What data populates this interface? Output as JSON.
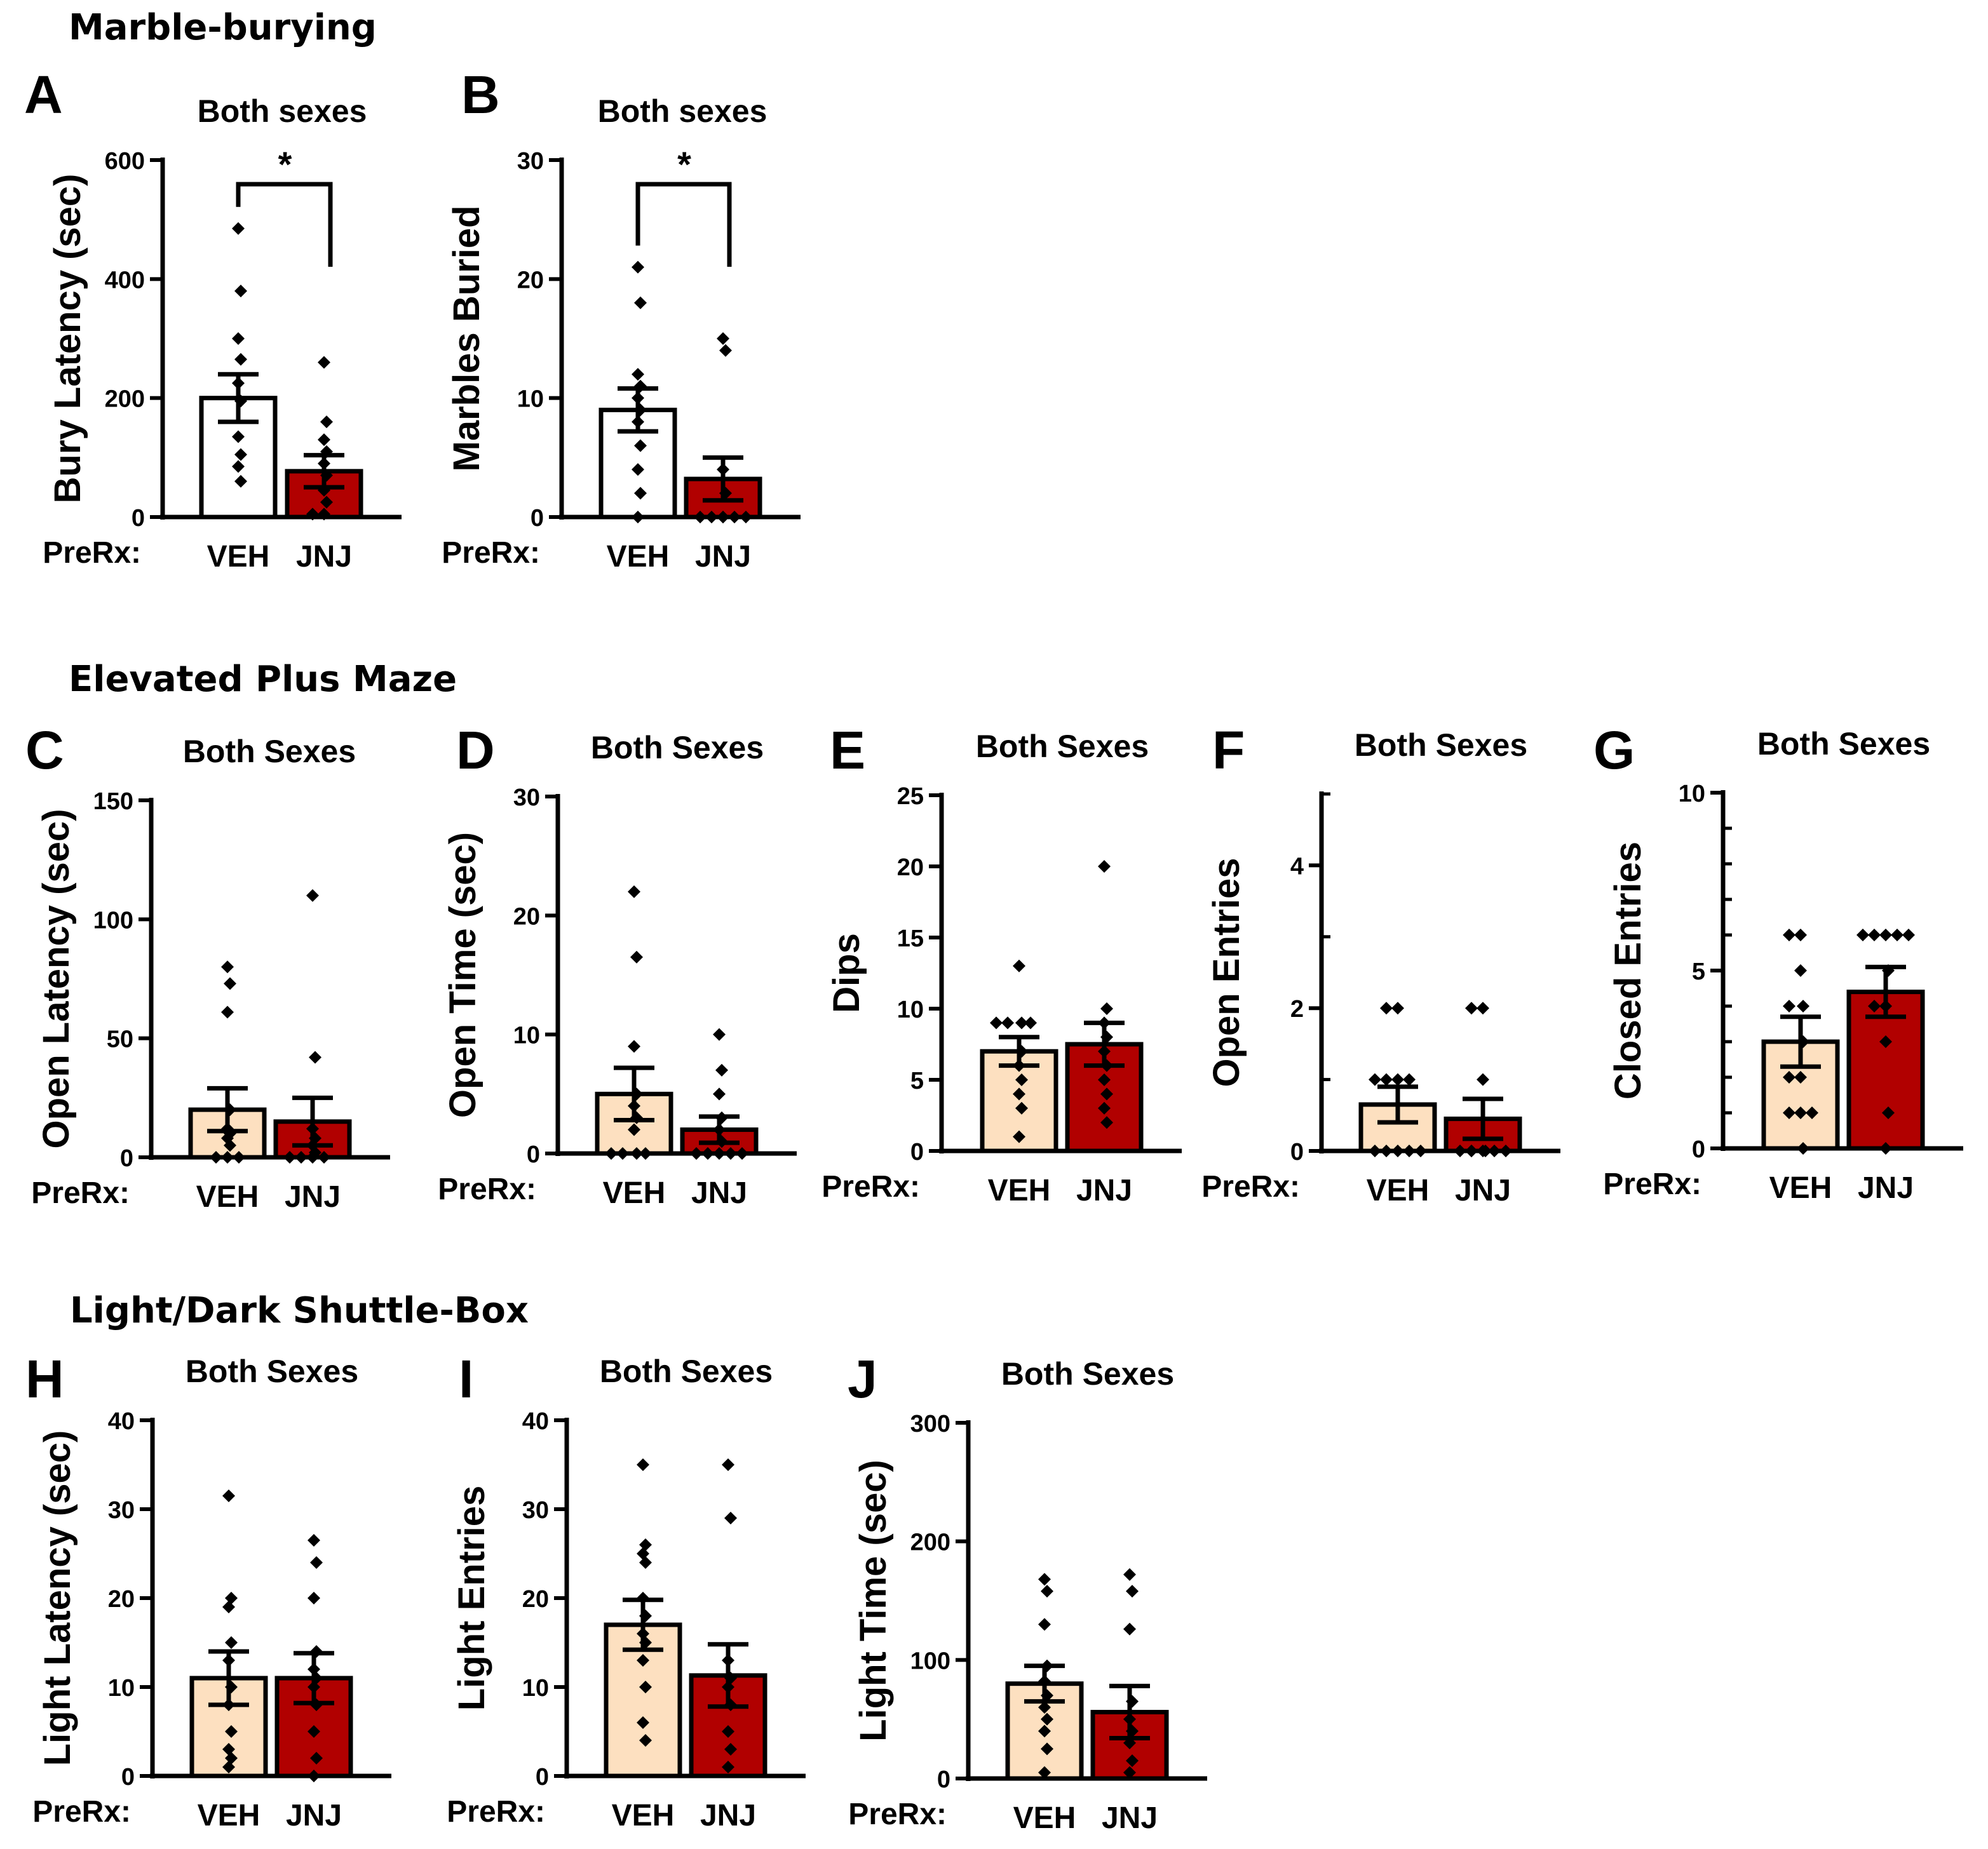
{
  "sections": [
    {
      "id": "marble",
      "title": "Marble-burying"
    },
    {
      "id": "epm",
      "title": "Elevated Plus Maze"
    },
    {
      "id": "ldb",
      "title": "Light/Dark Shuttle-Box"
    }
  ],
  "colors": {
    "veh_white": "#ffffff",
    "veh_tan": "#fde0c0",
    "jnj_red": "#b10000",
    "axis": "#000000"
  },
  "chart_data": [
    {
      "type": "bar",
      "panel": "A",
      "title": "Both sexes",
      "ylabel": "Bury Latency (sec)",
      "xprefix": "PreRx:",
      "categories": [
        "VEH",
        "JNJ"
      ],
      "ylim": [
        0,
        600
      ],
      "yticks": [
        0,
        200,
        400,
        600
      ],
      "minor_per_major": 0,
      "bar_colors": [
        "#ffffff",
        "#b10000"
      ],
      "means": [
        200,
        77
      ],
      "sem": [
        40,
        27
      ],
      "points": [
        [
          485,
          380,
          300,
          265,
          225,
          195,
          135,
          105,
          85,
          60
        ],
        [
          260,
          160,
          130,
          110,
          90,
          70,
          45,
          25,
          5,
          5
        ]
      ],
      "significance": [
        {
          "label": "*",
          "between": [
            0,
            1
          ]
        }
      ]
    },
    {
      "type": "bar",
      "panel": "B",
      "title": "Both sexes",
      "ylabel": "Marbles Buried",
      "xprefix": "PreRx:",
      "categories": [
        "VEH",
        "JNJ"
      ],
      "ylim": [
        0,
        30
      ],
      "yticks": [
        0,
        10,
        20,
        30
      ],
      "minor_per_major": 0,
      "bar_colors": [
        "#ffffff",
        "#b10000"
      ],
      "means": [
        9,
        3.2
      ],
      "sem": [
        1.8,
        1.8
      ],
      "points": [
        [
          21,
          18,
          12,
          11,
          10,
          9,
          8,
          6,
          4,
          2,
          0
        ],
        [
          15,
          14,
          4,
          2,
          0,
          0,
          0,
          0,
          0,
          0
        ]
      ],
      "significance": [
        {
          "label": "*",
          "between": [
            0,
            1
          ]
        }
      ]
    },
    {
      "type": "bar",
      "panel": "C",
      "title": "Both Sexes",
      "ylabel": "Open Latency (sec)",
      "xprefix": "PreRx:",
      "categories": [
        "VEH",
        "JNJ"
      ],
      "ylim": [
        0,
        150
      ],
      "yticks": [
        0,
        50,
        100,
        150
      ],
      "minor_per_major": 0,
      "bar_colors": [
        "#fde0c0",
        "#b10000"
      ],
      "means": [
        20,
        15
      ],
      "sem": [
        9,
        10
      ],
      "points": [
        [
          80,
          73,
          61,
          20,
          12,
          10,
          8,
          5,
          0,
          0,
          0
        ],
        [
          110,
          42,
          12,
          8,
          5,
          2,
          0,
          0,
          0,
          0
        ]
      ],
      "significance": []
    },
    {
      "type": "bar",
      "panel": "D",
      "title": "Both Sexes",
      "ylabel": "Open Time (sec)",
      "xprefix": "PreRx:",
      "categories": [
        "VEH",
        "JNJ"
      ],
      "ylim": [
        0,
        30
      ],
      "yticks": [
        0,
        10,
        20,
        30
      ],
      "minor_per_major": 0,
      "bar_colors": [
        "#fde0c0",
        "#b10000"
      ],
      "means": [
        5,
        2
      ],
      "sem": [
        2.2,
        1.1
      ],
      "points": [
        [
          22,
          16.5,
          9,
          5,
          4,
          3,
          2,
          0,
          0,
          0,
          0
        ],
        [
          10,
          7,
          5,
          3,
          2,
          1,
          0,
          0,
          0,
          0,
          0
        ]
      ],
      "significance": []
    },
    {
      "type": "bar",
      "panel": "E",
      "title": "Both Sexes",
      "ylabel": "Dips",
      "xprefix": "PreRx:",
      "categories": [
        "VEH",
        "JNJ"
      ],
      "ylim": [
        0,
        25
      ],
      "yticks": [
        0,
        5,
        10,
        15,
        20,
        25
      ],
      "minor_per_major": 0,
      "bar_colors": [
        "#fde0c0",
        "#b10000"
      ],
      "means": [
        7,
        7.5
      ],
      "sem": [
        1,
        1.5
      ],
      "points": [
        [
          13,
          9,
          9,
          9,
          9,
          7,
          6,
          5,
          4,
          3,
          1
        ],
        [
          20,
          10,
          9,
          8,
          7,
          6,
          5,
          4,
          3,
          2
        ]
      ],
      "significance": []
    },
    {
      "type": "bar",
      "panel": "F",
      "title": "Both Sexes",
      "ylabel": "Open Entries",
      "xprefix": "PreRx:",
      "categories": [
        "VEH",
        "JNJ"
      ],
      "ylim": [
        0,
        5
      ],
      "yticks": [
        0,
        2,
        4
      ],
      "minor_per_major": 1,
      "bar_colors": [
        "#fde0c0",
        "#b10000"
      ],
      "means": [
        0.65,
        0.45
      ],
      "sem": [
        0.25,
        0.28
      ],
      "points": [
        [
          2,
          2,
          1,
          1,
          1,
          1,
          0,
          0,
          0,
          0,
          0
        ],
        [
          2,
          2,
          1,
          0,
          0,
          0,
          0,
          0,
          0,
          0
        ]
      ],
      "significance": []
    },
    {
      "type": "bar",
      "panel": "G",
      "title": "Both Sexes",
      "ylabel": "Closed Entries",
      "xprefix": "PreRx:",
      "categories": [
        "VEH",
        "JNJ"
      ],
      "ylim": [
        0,
        10
      ],
      "yticks": [
        0,
        5,
        10
      ],
      "minor_per_major": 4,
      "bar_colors": [
        "#fde0c0",
        "#b10000"
      ],
      "means": [
        3,
        4.4
      ],
      "sem": [
        0.7,
        0.7
      ],
      "points": [
        [
          6,
          6,
          5,
          4,
          4,
          3,
          2,
          2,
          1,
          1,
          1,
          0
        ],
        [
          6,
          6,
          6,
          6,
          6,
          5,
          4,
          4,
          3,
          1,
          0
        ]
      ],
      "significance": []
    },
    {
      "type": "bar",
      "panel": "H",
      "title": "Both Sexes",
      "ylabel": "Light Latency (sec)",
      "xprefix": "PreRx:",
      "categories": [
        "VEH",
        "JNJ"
      ],
      "ylim": [
        0,
        40
      ],
      "yticks": [
        0,
        10,
        20,
        30,
        40
      ],
      "minor_per_major": 0,
      "bar_colors": [
        "#fde0c0",
        "#b10000"
      ],
      "means": [
        11,
        11
      ],
      "sem": [
        3,
        2.8
      ],
      "points": [
        [
          31.5,
          20,
          19,
          15,
          13,
          10,
          8,
          5,
          3,
          2,
          1
        ],
        [
          26.5,
          24,
          20,
          14,
          12,
          11,
          10,
          8,
          5,
          2,
          0
        ]
      ],
      "significance": []
    },
    {
      "type": "bar",
      "panel": "I",
      "title": "Both Sexes",
      "ylabel": "Light Entries",
      "xprefix": "PreRx:",
      "categories": [
        "VEH",
        "JNJ"
      ],
      "ylim": [
        0,
        40
      ],
      "yticks": [
        0,
        10,
        20,
        30,
        40
      ],
      "minor_per_major": 0,
      "bar_colors": [
        "#fde0c0",
        "#b10000"
      ],
      "means": [
        17,
        11.3
      ],
      "sem": [
        2.8,
        3.5
      ],
      "points": [
        [
          35,
          26,
          25,
          24,
          20,
          18,
          16,
          15,
          13,
          10,
          6,
          4
        ],
        [
          35,
          29,
          13,
          11,
          10,
          8,
          5,
          3,
          1
        ]
      ],
      "significance": []
    },
    {
      "type": "bar",
      "panel": "J",
      "title": "Both Sexes",
      "ylabel": "Light Time (sec)",
      "xprefix": "PreRx:",
      "categories": [
        "VEH",
        "JNJ"
      ],
      "ylim": [
        0,
        300
      ],
      "yticks": [
        0,
        100,
        200,
        300
      ],
      "minor_per_major": 0,
      "bar_colors": [
        "#fde0c0",
        "#b10000"
      ],
      "means": [
        80,
        56
      ],
      "sem": [
        15,
        22
      ],
      "points": [
        [
          168,
          158,
          130,
          95,
          82,
          70,
          60,
          50,
          40,
          25,
          5
        ],
        [
          172,
          158,
          126,
          65,
          50,
          40,
          30,
          15,
          5
        ]
      ],
      "significance": []
    }
  ]
}
